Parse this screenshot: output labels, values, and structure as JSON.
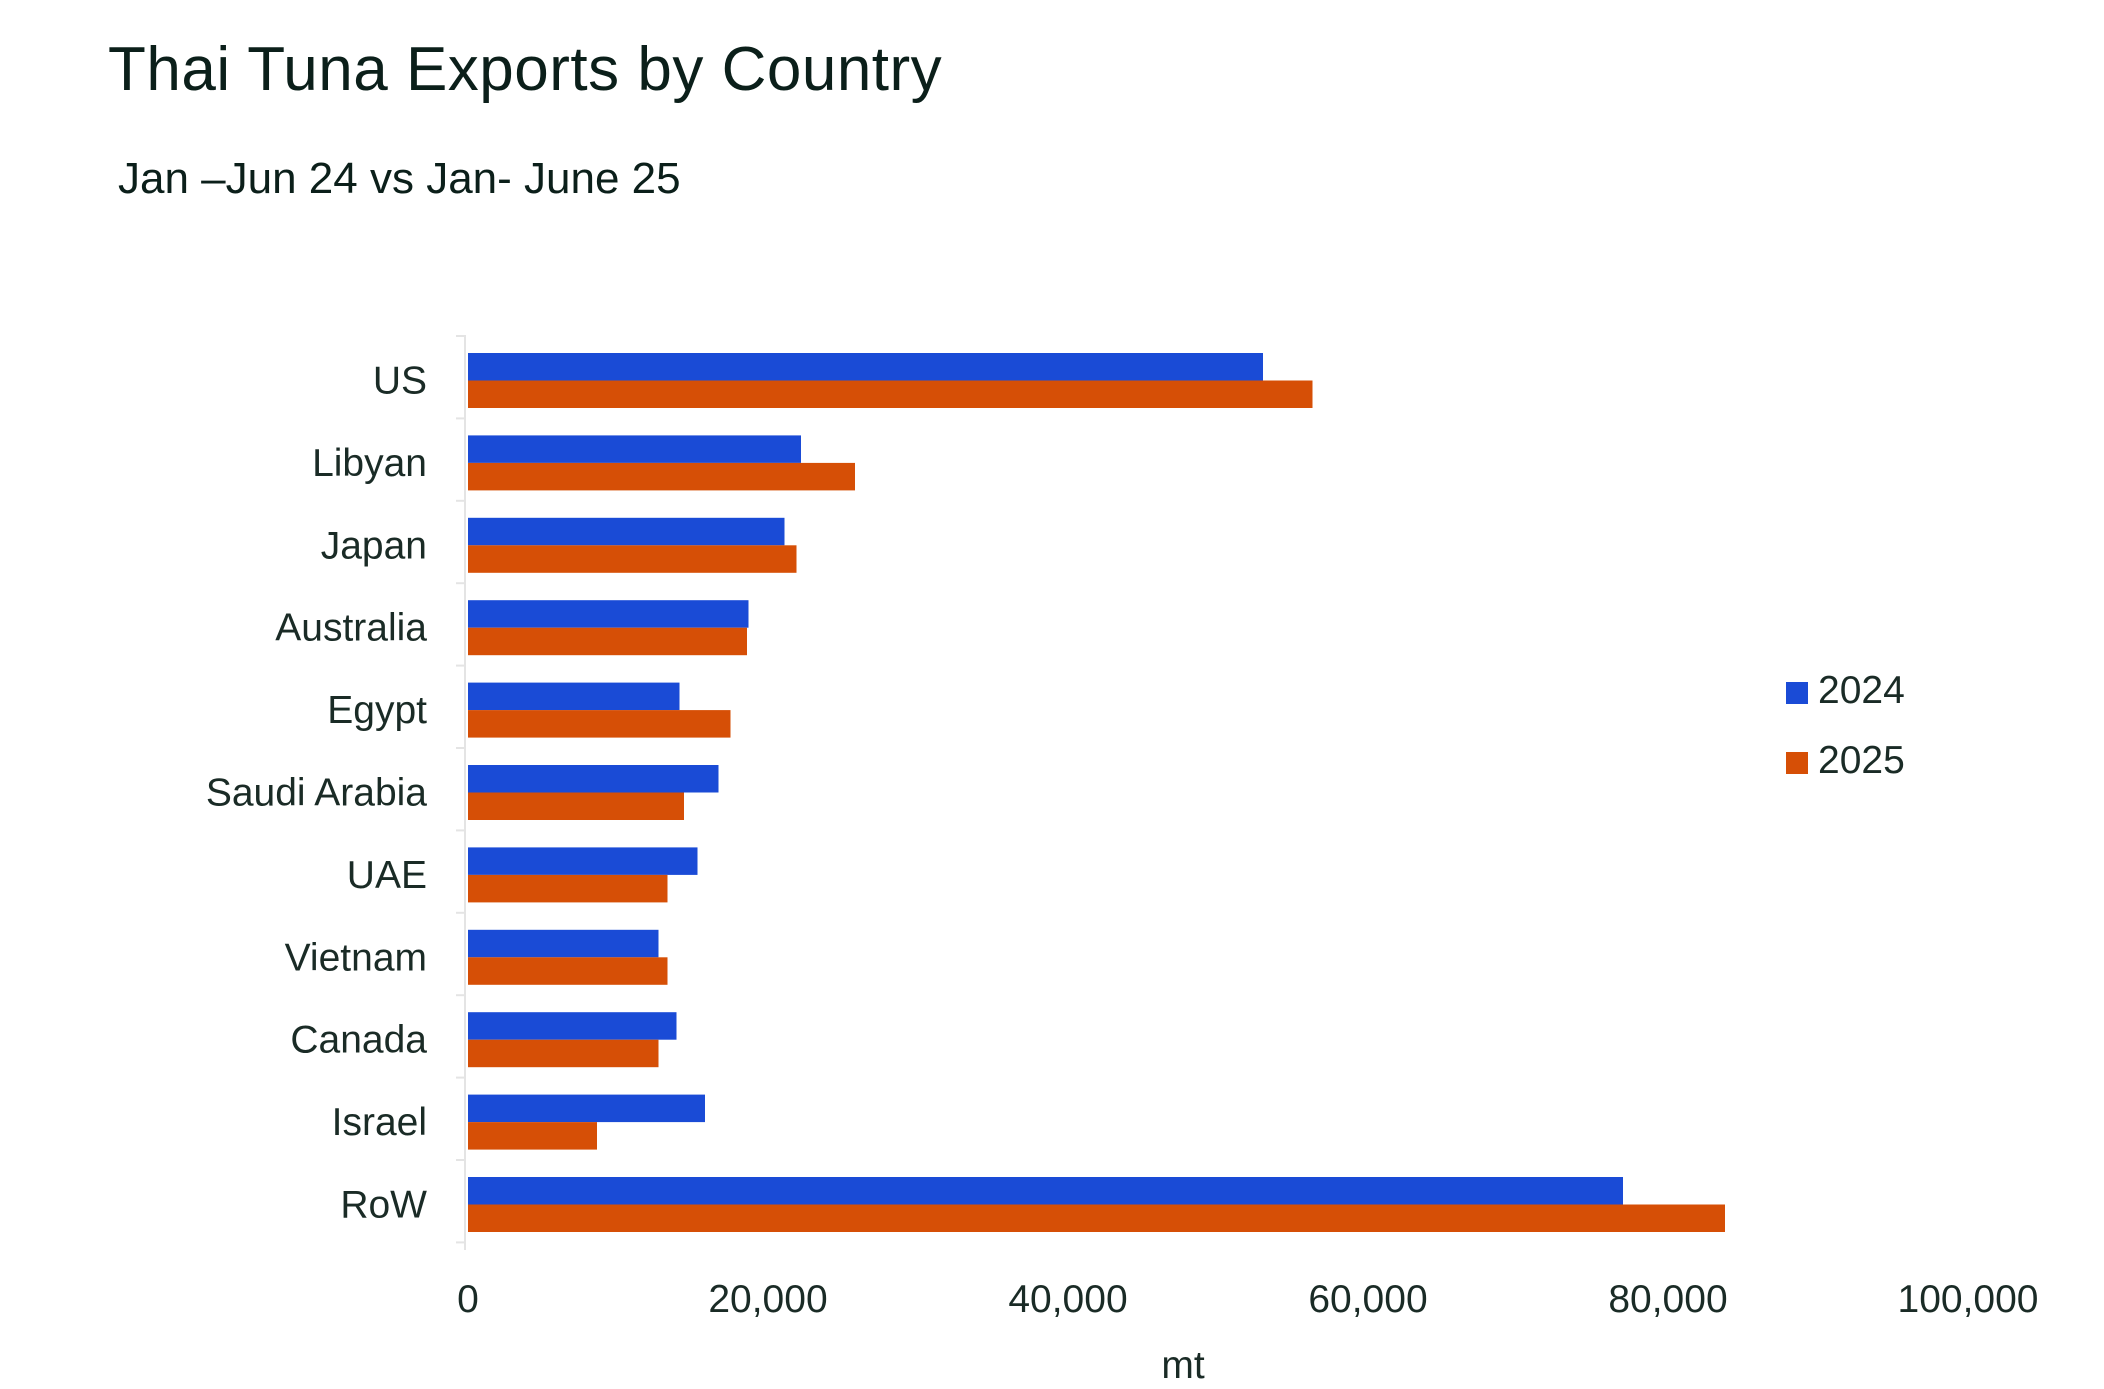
{
  "chart_data": {
    "type": "bar",
    "orientation": "horizontal",
    "title": "Thai Tuna Exports by Country",
    "subtitle": "Jan –Jun 24 vs Jan- June 25",
    "xlabel": "mt",
    "xlim": [
      0,
      100000
    ],
    "xticks": [
      0,
      20000,
      40000,
      60000,
      80000,
      100000
    ],
    "xtick_labels": [
      "0",
      "20,000",
      "40,000",
      "60,000",
      "80,000",
      "100,000"
    ],
    "categories": [
      "US",
      "Libyan",
      "Japan",
      "Australia",
      "Egypt",
      "Saudi Arabia",
      "UAE",
      "Vietnam",
      "Canada",
      "Israel",
      "RoW"
    ],
    "series": [
      {
        "name": "2024",
        "color": "#1a4bd6",
        "values": [
          53000,
          22200,
          21100,
          18700,
          14100,
          16700,
          15300,
          12700,
          13900,
          15800,
          77000
        ]
      },
      {
        "name": "2025",
        "color": "#d64f06",
        "values": [
          56300,
          25800,
          21900,
          18600,
          17500,
          14400,
          13300,
          13300,
          12700,
          8600,
          83800
        ]
      }
    ],
    "legend_position": "right",
    "grid": false
  }
}
